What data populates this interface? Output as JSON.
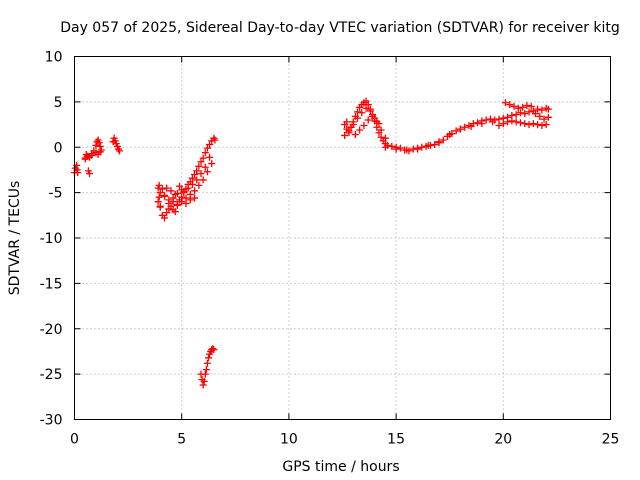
{
  "chart_data": {
    "type": "scatter",
    "title": "Day 057 of 2025, Sidereal Day-to-day VTEC variation (SDTVAR) for receiver kitg",
    "xlabel": "GPS time / hours",
    "ylabel": "SDTVAR / TECUs",
    "xlim": [
      0,
      25
    ],
    "ylim": [
      -30,
      10
    ],
    "xticks": [
      "0",
      "5",
      "10",
      "15",
      "20",
      "25"
    ],
    "yticks": [
      "10",
      "5",
      "0",
      "-5",
      "-10",
      "-15",
      "-20",
      "-25",
      "-30"
    ],
    "grid": true,
    "marker": "plus",
    "series": [
      {
        "name": "SDTVAR",
        "color": "#ff0000",
        "x": [
          0.0,
          0.05,
          0.1,
          0.12,
          0.15,
          0.5,
          0.55,
          0.6,
          0.65,
          0.7,
          0.8,
          0.9,
          1.0,
          1.05,
          1.1,
          1.15,
          1.2,
          1.25,
          1.2,
          1.1,
          1.0,
          0.8,
          0.7,
          0.6,
          0.5,
          1.8,
          1.85,
          1.9,
          1.95,
          2.0,
          2.05,
          2.1,
          3.9,
          3.95,
          4.0,
          4.1,
          4.2,
          4.3,
          4.4,
          4.5,
          4.6,
          4.7,
          4.8,
          4.9,
          5.0,
          5.1,
          5.2,
          5.3,
          5.4,
          5.5,
          5.6,
          5.7,
          5.8,
          5.9,
          6.0,
          6.1,
          6.2,
          6.3,
          6.4,
          6.5,
          6.55,
          3.95,
          4.1,
          4.3,
          4.5,
          4.7,
          4.9,
          5.1,
          5.3,
          5.5,
          5.7,
          5.9,
          6.1,
          6.3,
          3.9,
          4.0,
          4.2,
          4.4,
          4.6,
          4.8,
          5.0,
          5.2,
          5.4,
          5.6,
          5.8,
          6.0,
          6.2,
          6.4,
          4.0,
          4.2,
          4.4,
          4.6,
          4.8,
          5.0,
          5.2,
          5.4,
          5.6,
          5.9,
          5.95,
          6.0,
          6.05,
          6.1,
          6.15,
          6.2,
          6.25,
          6.3,
          6.35,
          6.4,
          6.45,
          6.5,
          12.6,
          12.7,
          12.8,
          12.9,
          13.0,
          13.1,
          13.2,
          13.3,
          13.4,
          13.5,
          13.6,
          13.7,
          13.8,
          13.9,
          14.0,
          14.1,
          14.2,
          14.3,
          14.4,
          14.5,
          14.6,
          14.8,
          15.0,
          15.2,
          15.4,
          15.6,
          15.8,
          16.0,
          16.2,
          16.4,
          16.6,
          16.8,
          17.0,
          17.2,
          17.4,
          17.6,
          17.8,
          18.0,
          18.2,
          18.4,
          18.6,
          18.8,
          19.0,
          19.2,
          19.4,
          19.6,
          19.8,
          20.0,
          20.2,
          20.4,
          20.6,
          20.8,
          21.0,
          21.2,
          21.4,
          21.6,
          21.8,
          22.0,
          22.1,
          12.6,
          12.8,
          13.0,
          13.2,
          13.4,
          13.6,
          13.8,
          14.0,
          14.2,
          12.7,
          12.9,
          13.1,
          13.3,
          13.5,
          13.7,
          13.9,
          14.1,
          14.3,
          14.5,
          19.8,
          20.0,
          20.2,
          20.4,
          20.6,
          20.8,
          21.0,
          21.2,
          21.4,
          21.6,
          21.8,
          22.0,
          20.1,
          20.3,
          20.5,
          20.7,
          20.9,
          21.1,
          21.3,
          21.5,
          21.7,
          21.9,
          22.1,
          14.5,
          15.0,
          15.5,
          16.0,
          16.5,
          17.0,
          17.5,
          18.0,
          18.5,
          19.0,
          19.5
        ],
        "y": [
          -2.8,
          -2.3,
          -2.0,
          -2.5,
          -2.8,
          -1.2,
          -0.8,
          -1.0,
          -2.6,
          -2.9,
          -0.7,
          -0.4,
          0.2,
          0.6,
          0.8,
          0.5,
          0.1,
          -0.3,
          -0.5,
          -0.8,
          -0.6,
          -0.9,
          -1.1,
          -1.0,
          -1.3,
          0.6,
          1.0,
          0.7,
          0.4,
          0.1,
          -0.2,
          -0.4,
          -4.5,
          -5.5,
          -6.6,
          -7.5,
          -7.8,
          -7.2,
          -6.8,
          -6.5,
          -6.9,
          -7.1,
          -6.3,
          -5.8,
          -5.5,
          -5.0,
          -4.6,
          -4.1,
          -3.8,
          -3.4,
          -3.0,
          -2.6,
          -2.1,
          -1.6,
          -1.2,
          -0.6,
          -0.1,
          0.3,
          0.7,
          1.0,
          0.8,
          -4.2,
          -4.6,
          -4.5,
          -4.8,
          -5.2,
          -4.3,
          -4.9,
          -4.5,
          -4.1,
          -3.6,
          -2.9,
          -2.2,
          -1.1,
          -6.0,
          -5.0,
          -5.3,
          -5.8,
          -5.6,
          -5.1,
          -4.7,
          -5.6,
          -5.2,
          -4.8,
          -4.2,
          -3.6,
          -2.7,
          -1.8,
          -6.5,
          -5.4,
          -6.2,
          -6.0,
          -6.4,
          -6.0,
          -6.2,
          -5.8,
          -5.6,
          -25.0,
          -25.6,
          -26.2,
          -25.8,
          -25.0,
          -24.5,
          -23.8,
          -23.2,
          -22.8,
          -22.5,
          -22.3,
          -22.2,
          -22.3,
          2.5,
          2.0,
          1.6,
          2.2,
          2.8,
          3.4,
          3.9,
          4.4,
          4.7,
          4.9,
          5.1,
          4.7,
          4.2,
          3.6,
          2.9,
          2.2,
          1.6,
          1.1,
          0.7,
          0.4,
          0.2,
          0.1,
          0.0,
          -0.1,
          -0.3,
          -0.4,
          -0.2,
          -0.1,
          0.0,
          0.1,
          0.2,
          0.3,
          0.5,
          0.8,
          1.2,
          1.5,
          1.8,
          2.0,
          2.2,
          2.4,
          2.6,
          2.7,
          2.9,
          3.0,
          3.1,
          3.0,
          3.1,
          3.2,
          3.3,
          3.5,
          3.6,
          3.8,
          3.7,
          3.9,
          4.0,
          4.2,
          4.1,
          4.3,
          4.2,
          1.3,
          1.8,
          2.5,
          3.2,
          3.8,
          4.3,
          4.0,
          3.2,
          2.6,
          2.8,
          2.2,
          1.4,
          1.9,
          2.4,
          3.0,
          3.4,
          2.8,
          1.9,
          1.0,
          2.4,
          2.6,
          2.8,
          2.9,
          2.8,
          2.7,
          2.6,
          2.5,
          2.6,
          2.5,
          2.4,
          2.5,
          4.9,
          4.7,
          4.5,
          4.3,
          4.4,
          4.6,
          4.5,
          3.7,
          3.4,
          3.1,
          3.3,
          0.0,
          -0.2,
          -0.3,
          -0.2,
          0.2,
          0.6,
          1.4,
          2.0,
          2.3,
          2.6,
          2.8
        ]
      }
    ]
  }
}
